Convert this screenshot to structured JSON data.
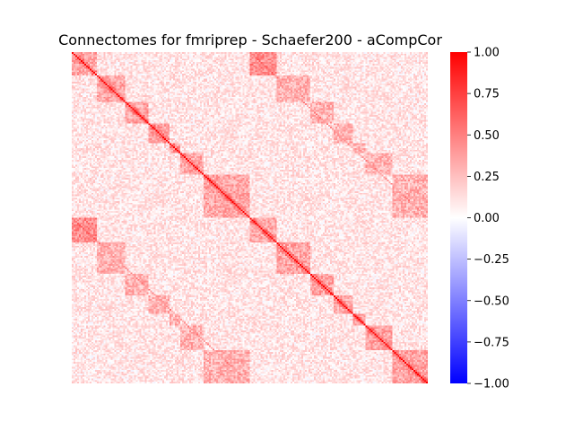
{
  "chart_data": {
    "type": "heatmap",
    "title": "Connectomes for fmriprep - Schaefer200 - aCompCor",
    "xlabel": "",
    "ylabel": "",
    "matrix_size": 200,
    "diagonal_value": 1.0,
    "block_structure": {
      "hemisphere_size": 100,
      "networks": [
        {
          "start": 0,
          "end": 14
        },
        {
          "start": 14,
          "end": 30
        },
        {
          "start": 30,
          "end": 43
        },
        {
          "start": 43,
          "end": 55
        },
        {
          "start": 55,
          "end": 61
        },
        {
          "start": 61,
          "end": 74
        },
        {
          "start": 74,
          "end": 100
        },
        {
          "start": 100,
          "end": 115
        },
        {
          "start": 115,
          "end": 134
        },
        {
          "start": 134,
          "end": 147
        },
        {
          "start": 147,
          "end": 158
        },
        {
          "start": 158,
          "end": 165
        },
        {
          "start": 165,
          "end": 180
        },
        {
          "start": 180,
          "end": 200
        }
      ],
      "within_network_mean": 0.35,
      "between_network_mean": 0.1,
      "homotopic_offdiagonal_mean": 0.45,
      "first_network_homotopic_mean": 0.6
    },
    "colorbar": {
      "cmap": "bwr",
      "vmin": -1.0,
      "vmax": 1.0,
      "ticks": [
        1.0,
        0.75,
        0.5,
        0.25,
        0.0,
        -0.25,
        -0.5,
        -0.75,
        -1.0
      ],
      "tick_labels": [
        "1.00",
        "0.75",
        "0.50",
        "0.25",
        "0.00",
        "−0.25",
        "−0.50",
        "−0.75",
        "−1.00"
      ]
    }
  }
}
